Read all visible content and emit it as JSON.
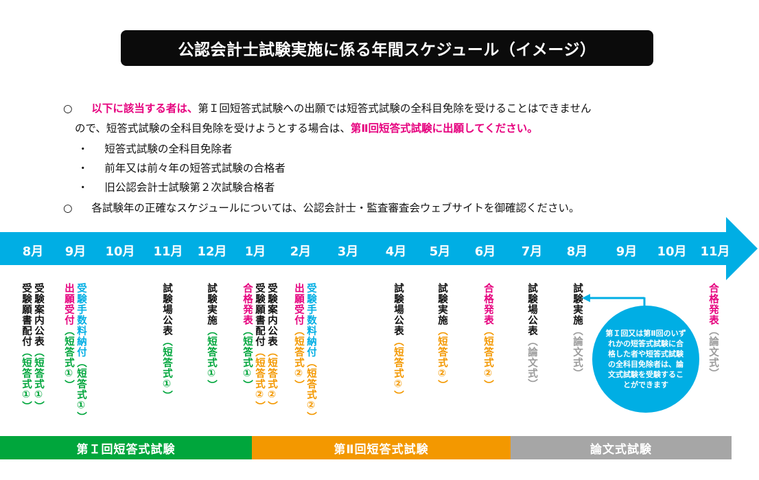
{
  "title": "公認会計士試験実施に係る年間スケジュール（イメージ）",
  "notes": {
    "circle": "○",
    "dot": "・",
    "line1_highlight": "以下に該当する者は、",
    "line1_rest": "第Ｉ回短答式試験への出願では短答式試験の全科目免除を受けることはできません",
    "line2_plain": "ので、短答式試験の全科目免除を受けようとする場合は、",
    "line2_highlight": "第Ⅱ回短答式試験に出願してください。",
    "items": [
      "短答式試験の全科目免除者",
      "前年又は前々年の短答式試験の合格者",
      "旧公認会計士試験第２次試験合格者"
    ],
    "line_last": "各試験年の正確なスケジュールについては、公認会計士・監査審査会ウェブサイトを御確認ください。"
  },
  "colors": {
    "arrow": "#00aee4",
    "green": "#00a63c",
    "orange": "#f39800",
    "gray": "#a6a6a6",
    "pink": "#e6007e"
  },
  "months": [
    "8月",
    "9月",
    "10月",
    "11月",
    "12月",
    "1月",
    "2月",
    "3月",
    "4月",
    "5月",
    "6月",
    "7月",
    "8月",
    "9月",
    "10月",
    "11月"
  ],
  "events": {
    "aug1_a": "受験案内公表",
    "aug1_a_tag": "（短答式①）",
    "aug1_b": "受験願書配付",
    "aug1_b_tag": "（短答式①）",
    "sep1_a": "受験手数料納付",
    "sep1_a_tag": "（短答式①）",
    "sep1_b": "出願受付",
    "sep1_b_tag": "（短答式①）",
    "nov1": "試験場公表",
    "nov1_tag": "（短答式①）",
    "dec1": "試験実施",
    "dec1_tag": "（短答式①）",
    "jan_a": "受験案内公表",
    "jan_a_tag": "（短答式②）",
    "jan_b": "受験願書配付",
    "jan_b_tag": "（短答式②）",
    "jan_c": "合格発表",
    "jan_c_tag": "（短答式①）",
    "feb_a": "受験手数料納付",
    "feb_a_tag": "（短答式②）",
    "feb_b": "出願受付",
    "feb_b_tag": "（短答式②）",
    "apr": "試験場公表",
    "apr_tag": "（短答式②）",
    "may": "試験実施",
    "may_tag": "（短答式②）",
    "jun": "合格発表",
    "jun_tag": "（短答式②）",
    "jul": "試験場公表",
    "jul_tag": "（論文式）",
    "aug2": "試験実施",
    "aug2_tag": "（論文式）",
    "nov2": "合格発表",
    "nov2_tag": "（論文式）"
  },
  "callout": "第Ｉ回又は第Ⅱ回のいずれかの短答式試験に合格した者や短答式試験の全科目免除者は、論文式試験を受験することができます",
  "bands": [
    "第Ｉ回短答式試験",
    "第Ⅱ回短答式試験",
    "論文式試験"
  ]
}
